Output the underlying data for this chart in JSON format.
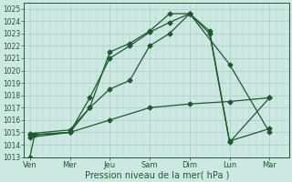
{
  "xlabel": "Pression niveau de la mer( hPa )",
  "xtick_labels": [
    "Ven",
    "Mer",
    "Jeu",
    "Sam",
    "Dim",
    "Lun",
    "Mar"
  ],
  "xtick_positions": [
    0,
    1,
    2,
    3,
    4,
    5,
    6
  ],
  "ylim": [
    1013,
    1025.5
  ],
  "yticks": [
    1013,
    1014,
    1015,
    1016,
    1017,
    1018,
    1019,
    1020,
    1021,
    1022,
    1023,
    1024,
    1025
  ],
  "bg_color": "#cde8e2",
  "grid_color": "#a8ccc6",
  "line_color": "#1a5c2a",
  "markersize": 2.5,
  "linewidth": 0.9,
  "line1_x": [
    0,
    0.12,
    1,
    2,
    3,
    4,
    5,
    6
  ],
  "line1_y": [
    1013.0,
    1014.8,
    1015.0,
    1016.0,
    1017.0,
    1017.3,
    1017.5,
    1017.8
  ],
  "line2_x": [
    0,
    1,
    1.5,
    2,
    2.5,
    3,
    3.5,
    4,
    5,
    6
  ],
  "line2_y": [
    1014.6,
    1015.0,
    1017.0,
    1018.5,
    1019.2,
    1022.0,
    1023.0,
    1024.6,
    1020.5,
    1015.0
  ],
  "line3_x": [
    0,
    1,
    1.5,
    2,
    2.5,
    3,
    3.5,
    4,
    4.5,
    5,
    6
  ],
  "line3_y": [
    1014.8,
    1015.0,
    1017.8,
    1021.0,
    1022.0,
    1023.1,
    1023.9,
    1024.6,
    1023.2,
    1014.3,
    1015.3
  ],
  "line4_x": [
    0,
    1,
    1.5,
    2,
    2.5,
    3,
    3.5,
    4,
    4.5,
    5,
    6
  ],
  "line4_y": [
    1014.9,
    1015.2,
    1017.0,
    1021.5,
    1022.2,
    1023.2,
    1024.6,
    1024.6,
    1023.0,
    1014.2,
    1017.8
  ]
}
